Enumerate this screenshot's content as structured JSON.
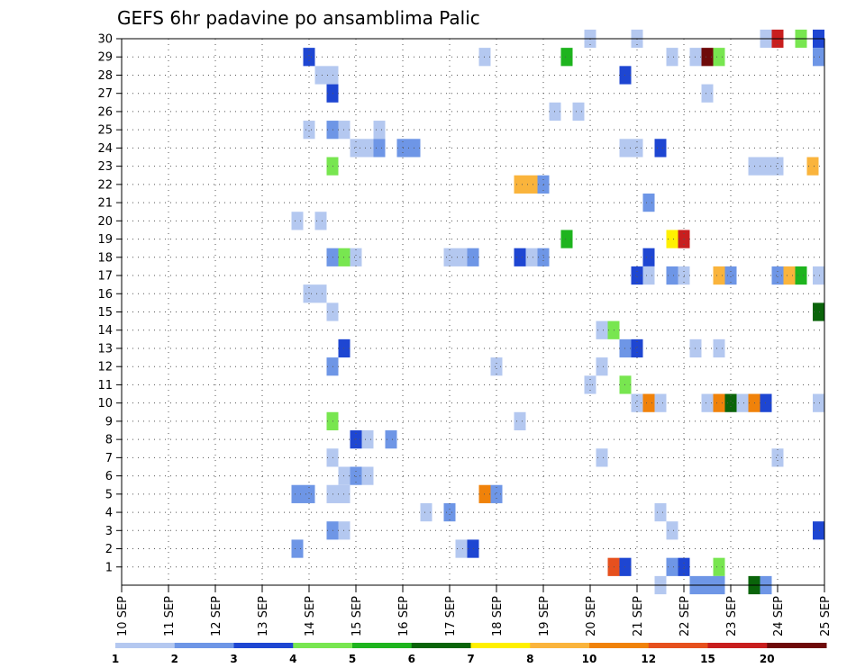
{
  "chart_data": {
    "type": "heatmap",
    "title": "GEFS 6hr padavine po ansamblima Palic",
    "xlabel": "",
    "ylabel": "",
    "x_ticks": [
      "10 SEP",
      "11 SEP",
      "12 SEP",
      "13 SEP",
      "14 SEP",
      "15 SEP",
      "16 SEP",
      "17 SEP",
      "18 SEP",
      "19 SEP",
      "20 SEP",
      "21 SEP",
      "22 SEP",
      "23 SEP",
      "24 SEP",
      "25 SEP"
    ],
    "x_unit": "6-hour step from 10 SEP 00UTC",
    "y_ticks": [
      "1",
      "2",
      "3",
      "4",
      "5",
      "6",
      "7",
      "8",
      "9",
      "10",
      "11",
      "12",
      "13",
      "14",
      "15",
      "16",
      "17",
      "18",
      "19",
      "20",
      "21",
      "22",
      "23",
      "24",
      "25",
      "26",
      "27",
      "28",
      "29",
      "30"
    ],
    "xlim": [
      0,
      60
    ],
    "ylim": [
      0,
      30
    ],
    "grid": true,
    "legend_placement": "bottom",
    "levels": [
      {
        "label": "1",
        "color": "#b4c8f0"
      },
      {
        "label": "2",
        "color": "#6e96e6"
      },
      {
        "label": "3",
        "color": "#1e46d2"
      },
      {
        "label": "4",
        "color": "#78e650"
      },
      {
        "label": "5",
        "color": "#1eb41e"
      },
      {
        "label": "6",
        "color": "#0a640a"
      },
      {
        "label": "7",
        "color": "#fff000"
      },
      {
        "label": "8",
        "color": "#fab43c"
      },
      {
        "label": "10",
        "color": "#f0820a"
      },
      {
        "label": "12",
        "color": "#e6501e"
      },
      {
        "label": "15",
        "color": "#c81e1e"
      },
      {
        "label": "20",
        "color": "#6e0a0a"
      }
    ],
    "cells": [
      {
        "member": 30,
        "step": 40,
        "cls": 0
      },
      {
        "member": 30,
        "step": 44,
        "cls": 0
      },
      {
        "member": 30,
        "step": 55,
        "cls": 0
      },
      {
        "member": 30,
        "step": 56,
        "cls": 10
      },
      {
        "member": 30,
        "step": 58,
        "cls": 3
      },
      {
        "member": 30,
        "step": 59.5,
        "cls": 2
      },
      {
        "member": 29,
        "step": 16,
        "cls": 2
      },
      {
        "member": 29,
        "step": 31,
        "cls": 0
      },
      {
        "member": 29,
        "step": 38,
        "cls": 4
      },
      {
        "member": 29,
        "step": 47,
        "cls": 0
      },
      {
        "member": 29,
        "step": 49,
        "cls": 0
      },
      {
        "member": 29,
        "step": 50,
        "cls": 11
      },
      {
        "member": 29,
        "step": 51,
        "cls": 3
      },
      {
        "member": 29,
        "step": 59.5,
        "cls": 1
      },
      {
        "member": 28,
        "step": 17,
        "cls": 0
      },
      {
        "member": 28,
        "step": 18,
        "cls": 0
      },
      {
        "member": 28,
        "step": 43,
        "cls": 2
      },
      {
        "member": 27,
        "step": 18,
        "cls": 2
      },
      {
        "member": 27,
        "step": 50,
        "cls": 0
      },
      {
        "member": 26,
        "step": 37,
        "cls": 0
      },
      {
        "member": 26,
        "step": 39,
        "cls": 0
      },
      {
        "member": 25,
        "step": 16,
        "cls": 0
      },
      {
        "member": 25,
        "step": 18,
        "cls": 1
      },
      {
        "member": 25,
        "step": 19,
        "cls": 0
      },
      {
        "member": 25,
        "step": 22,
        "cls": 0
      },
      {
        "member": 24,
        "step": 20,
        "cls": 0
      },
      {
        "member": 24,
        "step": 21,
        "cls": 0
      },
      {
        "member": 24,
        "step": 22,
        "cls": 1
      },
      {
        "member": 24,
        "step": 24,
        "cls": 1
      },
      {
        "member": 24,
        "step": 25,
        "cls": 1
      },
      {
        "member": 24,
        "step": 43,
        "cls": 0
      },
      {
        "member": 24,
        "step": 44,
        "cls": 0
      },
      {
        "member": 24,
        "step": 46,
        "cls": 2
      },
      {
        "member": 23,
        "step": 18,
        "cls": 3
      },
      {
        "member": 23,
        "step": 54,
        "cls": 0
      },
      {
        "member": 23,
        "step": 55,
        "cls": 0
      },
      {
        "member": 23,
        "step": 56,
        "cls": 0
      },
      {
        "member": 23,
        "step": 59,
        "cls": 7
      },
      {
        "member": 22,
        "step": 34,
        "cls": 7
      },
      {
        "member": 22,
        "step": 35,
        "cls": 7
      },
      {
        "member": 22,
        "step": 36,
        "cls": 1
      },
      {
        "member": 21,
        "step": 45,
        "cls": 1
      },
      {
        "member": 20,
        "step": 15,
        "cls": 0
      },
      {
        "member": 20,
        "step": 17,
        "cls": 0
      },
      {
        "member": 19,
        "step": 38,
        "cls": 4
      },
      {
        "member": 19,
        "step": 47,
        "cls": 6
      },
      {
        "member": 19,
        "step": 48,
        "cls": 10
      },
      {
        "member": 18,
        "step": 18,
        "cls": 1
      },
      {
        "member": 18,
        "step": 19,
        "cls": 3
      },
      {
        "member": 18,
        "step": 20,
        "cls": 0
      },
      {
        "member": 18,
        "step": 28,
        "cls": 0
      },
      {
        "member": 18,
        "step": 29,
        "cls": 0
      },
      {
        "member": 18,
        "step": 30,
        "cls": 1
      },
      {
        "member": 18,
        "step": 34,
        "cls": 2
      },
      {
        "member": 18,
        "step": 35,
        "cls": 0
      },
      {
        "member": 18,
        "step": 36,
        "cls": 1
      },
      {
        "member": 18,
        "step": 45,
        "cls": 2
      },
      {
        "member": 17,
        "step": 44,
        "cls": 2
      },
      {
        "member": 17,
        "step": 45,
        "cls": 0
      },
      {
        "member": 17,
        "step": 47,
        "cls": 1
      },
      {
        "member": 17,
        "step": 48,
        "cls": 0
      },
      {
        "member": 17,
        "step": 51,
        "cls": 7
      },
      {
        "member": 17,
        "step": 52,
        "cls": 1
      },
      {
        "member": 17,
        "step": 56,
        "cls": 1
      },
      {
        "member": 17,
        "step": 57,
        "cls": 7
      },
      {
        "member": 17,
        "step": 58,
        "cls": 4
      },
      {
        "member": 17,
        "step": 59.5,
        "cls": 0
      },
      {
        "member": 16,
        "step": 16,
        "cls": 0
      },
      {
        "member": 16,
        "step": 17,
        "cls": 0
      },
      {
        "member": 15,
        "step": 18,
        "cls": 0
      },
      {
        "member": 15,
        "step": 59.5,
        "cls": 5
      },
      {
        "member": 14,
        "step": 41,
        "cls": 0
      },
      {
        "member": 14,
        "step": 42,
        "cls": 3
      },
      {
        "member": 13,
        "step": 19,
        "cls": 2
      },
      {
        "member": 13,
        "step": 43,
        "cls": 1
      },
      {
        "member": 13,
        "step": 44,
        "cls": 2
      },
      {
        "member": 13,
        "step": 49,
        "cls": 0
      },
      {
        "member": 13,
        "step": 51,
        "cls": 0
      },
      {
        "member": 12,
        "step": 18,
        "cls": 1
      },
      {
        "member": 12,
        "step": 32,
        "cls": 0
      },
      {
        "member": 12,
        "step": 41,
        "cls": 0
      },
      {
        "member": 11,
        "step": 40,
        "cls": 0
      },
      {
        "member": 11,
        "step": 43,
        "cls": 3
      },
      {
        "member": 10,
        "step": 44,
        "cls": 0
      },
      {
        "member": 10,
        "step": 45,
        "cls": 8
      },
      {
        "member": 10,
        "step": 46,
        "cls": 0
      },
      {
        "member": 10,
        "step": 50,
        "cls": 0
      },
      {
        "member": 10,
        "step": 51,
        "cls": 8
      },
      {
        "member": 10,
        "step": 52,
        "cls": 5
      },
      {
        "member": 10,
        "step": 53,
        "cls": 0
      },
      {
        "member": 10,
        "step": 54,
        "cls": 8
      },
      {
        "member": 10,
        "step": 55,
        "cls": 2
      },
      {
        "member": 10,
        "step": 59.5,
        "cls": 0
      },
      {
        "member": 9,
        "step": 18,
        "cls": 3
      },
      {
        "member": 9,
        "step": 34,
        "cls": 0
      },
      {
        "member": 8,
        "step": 20,
        "cls": 2
      },
      {
        "member": 8,
        "step": 21,
        "cls": 0
      },
      {
        "member": 8,
        "step": 23,
        "cls": 1
      },
      {
        "member": 7,
        "step": 18,
        "cls": 0
      },
      {
        "member": 7,
        "step": 41,
        "cls": 0
      },
      {
        "member": 7,
        "step": 56,
        "cls": 0
      },
      {
        "member": 6,
        "step": 19,
        "cls": 0
      },
      {
        "member": 6,
        "step": 20,
        "cls": 1
      },
      {
        "member": 6,
        "step": 21,
        "cls": 0
      },
      {
        "member": 5,
        "step": 15,
        "cls": 1
      },
      {
        "member": 5,
        "step": 16,
        "cls": 1
      },
      {
        "member": 5,
        "step": 18,
        "cls": 0
      },
      {
        "member": 5,
        "step": 19,
        "cls": 0
      },
      {
        "member": 5,
        "step": 31,
        "cls": 8
      },
      {
        "member": 5,
        "step": 32,
        "cls": 1
      },
      {
        "member": 4,
        "step": 26,
        "cls": 0
      },
      {
        "member": 4,
        "step": 28,
        "cls": 1
      },
      {
        "member": 4,
        "step": 46,
        "cls": 0
      },
      {
        "member": 3,
        "step": 18,
        "cls": 1
      },
      {
        "member": 3,
        "step": 19,
        "cls": 0
      },
      {
        "member": 3,
        "step": 47,
        "cls": 0
      },
      {
        "member": 3,
        "step": 59.5,
        "cls": 2
      },
      {
        "member": 2,
        "step": 15,
        "cls": 1
      },
      {
        "member": 2,
        "step": 29,
        "cls": 0
      },
      {
        "member": 2,
        "step": 30,
        "cls": 2
      },
      {
        "member": 1,
        "step": 42,
        "cls": 9
      },
      {
        "member": 1,
        "step": 43,
        "cls": 2
      },
      {
        "member": 1,
        "step": 47,
        "cls": 1
      },
      {
        "member": 1,
        "step": 48,
        "cls": 2
      },
      {
        "member": 1,
        "step": 51,
        "cls": 3
      },
      {
        "member": 0,
        "step": 46,
        "cls": 0
      },
      {
        "member": 0,
        "step": 49,
        "cls": 1
      },
      {
        "member": 0,
        "step": 50,
        "cls": 1
      },
      {
        "member": 0,
        "step": 51,
        "cls": 1
      },
      {
        "member": 0,
        "step": 54,
        "cls": 5
      },
      {
        "member": 0,
        "step": 55,
        "cls": 1
      }
    ]
  }
}
